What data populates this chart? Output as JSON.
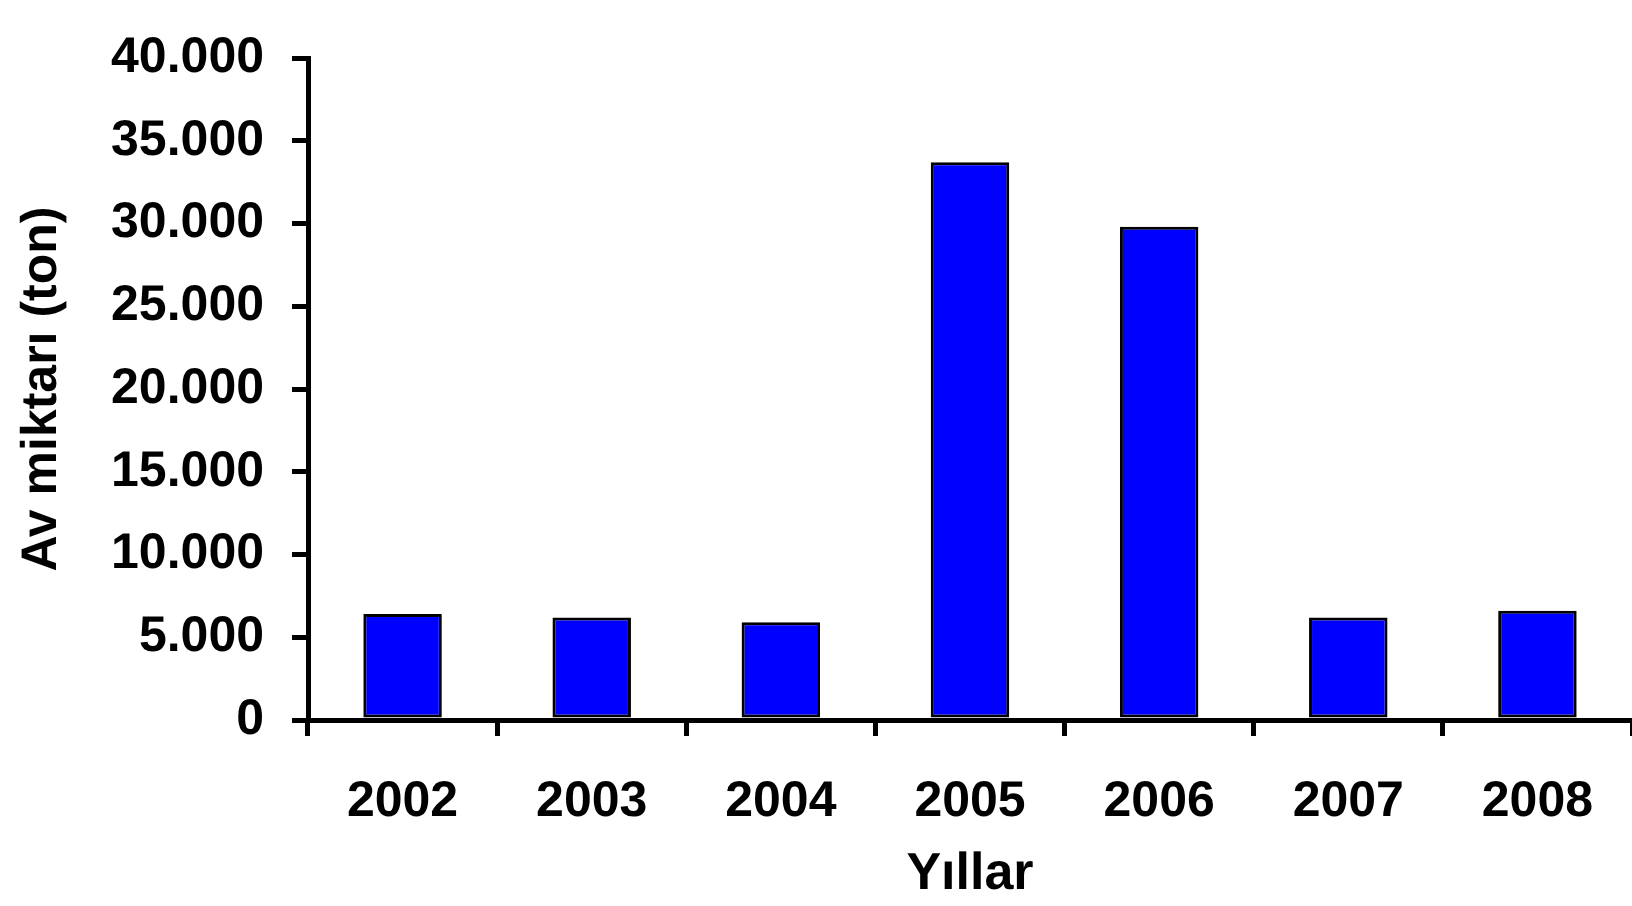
{
  "chart_data": {
    "type": "bar",
    "xlabel": "Yıllar",
    "ylabel": "Av miktarı (ton)",
    "categories": [
      "2002",
      "2003",
      "2004",
      "2005",
      "2006",
      "2007",
      "2008"
    ],
    "values": [
      6400,
      6200,
      5900,
      33700,
      29800,
      6200,
      6600
    ],
    "color": "#0000ff",
    "ylim": [
      0,
      40000
    ],
    "yticks": [
      0,
      {
        "value": 5000,
        "label": "5.000"
      },
      {
        "value": 10000,
        "label": "10.000"
      },
      {
        "value": 15000,
        "label": "15.000"
      },
      {
        "value": 20000,
        "label": "20.000"
      },
      {
        "value": 25000,
        "label": "25.000"
      },
      {
        "value": 30000,
        "label": "30.000"
      },
      {
        "value": 35000,
        "label": "35.000"
      },
      {
        "value": 40000,
        "label": "40.000"
      }
    ]
  }
}
